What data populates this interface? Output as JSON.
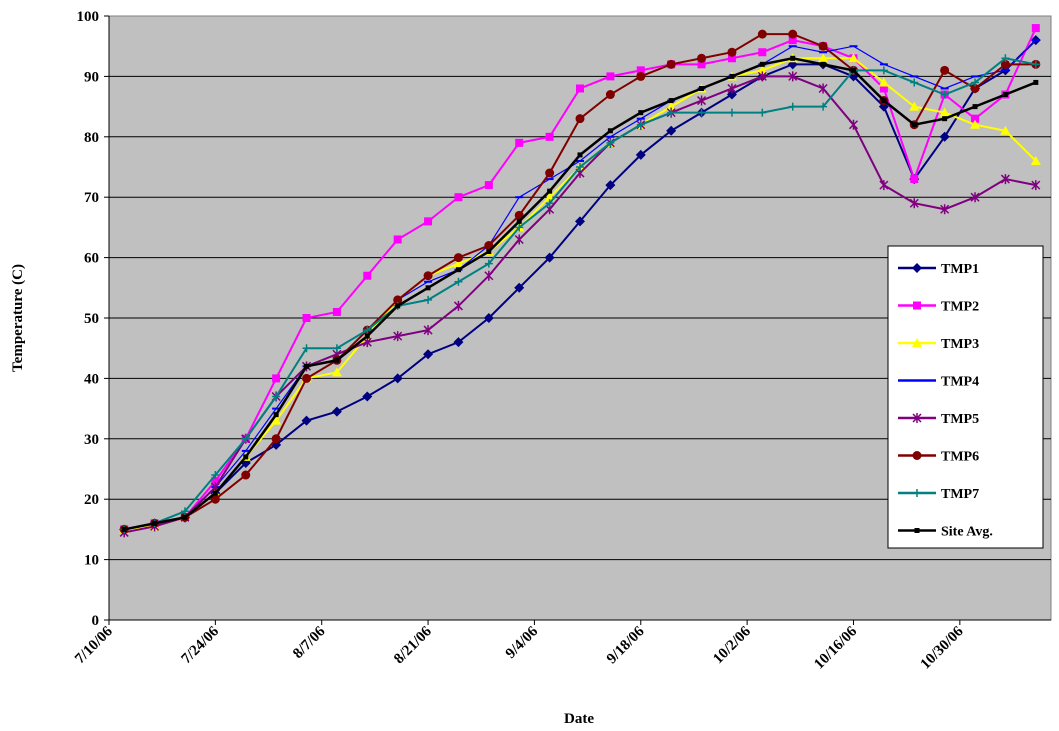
{
  "chart_data": {
    "type": "line",
    "title": "",
    "xlabel": "Date",
    "ylabel": "Temperature (C)",
    "ylim": [
      0,
      100
    ],
    "y_ticks": [
      "0",
      "10",
      "20",
      "30",
      "40",
      "50",
      "60",
      "70",
      "80",
      "90",
      "100"
    ],
    "x_ticks": [
      "7/10/06",
      "7/24/06",
      "8/7/06",
      "8/21/06",
      "9/4/06",
      "9/18/06",
      "10/2/06",
      "10/16/06",
      "10/30/06"
    ],
    "xlim": [
      "2006-07-10",
      "2006-11-11"
    ],
    "grid": "horizontal",
    "plot_background": "#C0C0C0",
    "legend_position": "right",
    "x": [
      "2006-07-12",
      "2006-07-16",
      "2006-07-20",
      "2006-07-24",
      "2006-07-28",
      "2006-08-01",
      "2006-08-05",
      "2006-08-09",
      "2006-08-13",
      "2006-08-17",
      "2006-08-21",
      "2006-08-25",
      "2006-08-29",
      "2006-09-02",
      "2006-09-06",
      "2006-09-10",
      "2006-09-14",
      "2006-09-18",
      "2006-09-22",
      "2006-09-26",
      "2006-09-30",
      "2006-10-04",
      "2006-10-08",
      "2006-10-12",
      "2006-10-16",
      "2006-10-20",
      "2006-10-24",
      "2006-10-28",
      "2006-11-01",
      "2006-11-05",
      "2006-11-09"
    ],
    "series": [
      {
        "name": "TMP1",
        "color": "#000080",
        "marker": "diamond",
        "values": [
          15,
          16,
          17,
          21,
          26,
          29,
          33,
          34.5,
          37,
          40,
          44,
          46,
          50,
          55,
          60,
          66,
          72,
          77,
          81,
          84,
          87,
          90,
          92,
          92,
          90,
          85,
          73,
          80,
          88,
          91,
          96
        ]
      },
      {
        "name": "TMP2",
        "color": "#FF00FF",
        "marker": "square",
        "values": [
          15,
          16,
          17,
          23,
          30,
          40,
          50,
          51,
          57,
          63,
          66,
          70,
          72,
          79,
          80,
          88,
          90,
          91,
          92,
          92,
          93,
          94,
          96,
          95,
          93,
          88,
          73,
          87,
          83,
          87,
          98
        ]
      },
      {
        "name": "TMP3",
        "color": "#FFFF00",
        "marker": "triangle",
        "values": [
          15,
          15.5,
          17,
          21,
          27,
          33,
          40,
          41,
          47,
          53,
          57,
          59,
          61,
          65,
          70,
          75,
          79,
          82,
          85,
          88,
          90,
          91,
          93,
          93,
          93,
          89,
          85,
          84,
          82,
          81,
          76
        ]
      },
      {
        "name": "TMP4",
        "color": "#0000FF",
        "marker": "dash",
        "values": [
          15,
          16,
          17,
          22,
          28,
          35,
          42,
          43,
          48,
          53,
          56,
          58,
          62,
          70,
          73,
          76,
          80,
          83,
          86,
          88,
          90,
          92,
          95,
          94,
          95,
          92,
          90,
          88,
          90,
          91,
          96
        ]
      },
      {
        "name": "TMP5",
        "color": "#800080",
        "marker": "x",
        "values": [
          14.5,
          15.5,
          17,
          22,
          30,
          37,
          42,
          44,
          46,
          47,
          48,
          52,
          57,
          63,
          68,
          74,
          79,
          82,
          84,
          86,
          88,
          90,
          90,
          88,
          82,
          72,
          69,
          68,
          70,
          73,
          72
        ]
      },
      {
        "name": "TMP6",
        "color": "#800000",
        "marker": "circle",
        "values": [
          15,
          16,
          17,
          20,
          24,
          30,
          40,
          43,
          48,
          53,
          57,
          60,
          62,
          67,
          74,
          83,
          87,
          90,
          92,
          93,
          94,
          97,
          97,
          95,
          91,
          86,
          82,
          91,
          88,
          92,
          92
        ]
      },
      {
        "name": "TMP7",
        "color": "#008080",
        "marker": "plus",
        "values": [
          15,
          16,
          18,
          24,
          30,
          37,
          45,
          45,
          48,
          52,
          53,
          56,
          59,
          65,
          69,
          75,
          79,
          82,
          84,
          84,
          84,
          84,
          85,
          85,
          91,
          91,
          89,
          87,
          89,
          93,
          92
        ]
      },
      {
        "name": "Site Avg.",
        "color": "#000000",
        "marker": "square-small",
        "values": [
          15,
          16,
          17,
          21,
          27,
          34,
          42,
          43,
          47,
          52,
          55,
          58,
          61,
          66,
          71,
          77,
          81,
          84,
          86,
          88,
          90,
          92,
          93,
          92,
          91,
          86,
          82,
          83,
          85,
          87,
          89
        ]
      }
    ]
  }
}
